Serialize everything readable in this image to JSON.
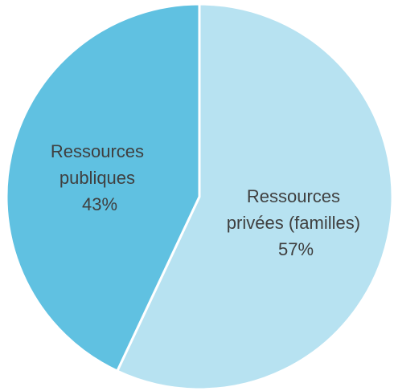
{
  "chart_data": {
    "type": "pie",
    "slices": [
      {
        "label": "Ressources privées (familles)",
        "label_lines": [
          "Ressources",
          "privées (familles)"
        ],
        "value": 57,
        "value_label": "57%",
        "color": "#b7e2f1"
      },
      {
        "label": "Ressources publiques",
        "label_lines": [
          "Ressources",
          "publiques"
        ],
        "value": 43,
        "value_label": "43%",
        "color": "#60c1e1"
      }
    ],
    "start_angle": "12 o'clock",
    "direction": "clockwise",
    "slice_border_color": "#ffffff",
    "legend": "none"
  }
}
